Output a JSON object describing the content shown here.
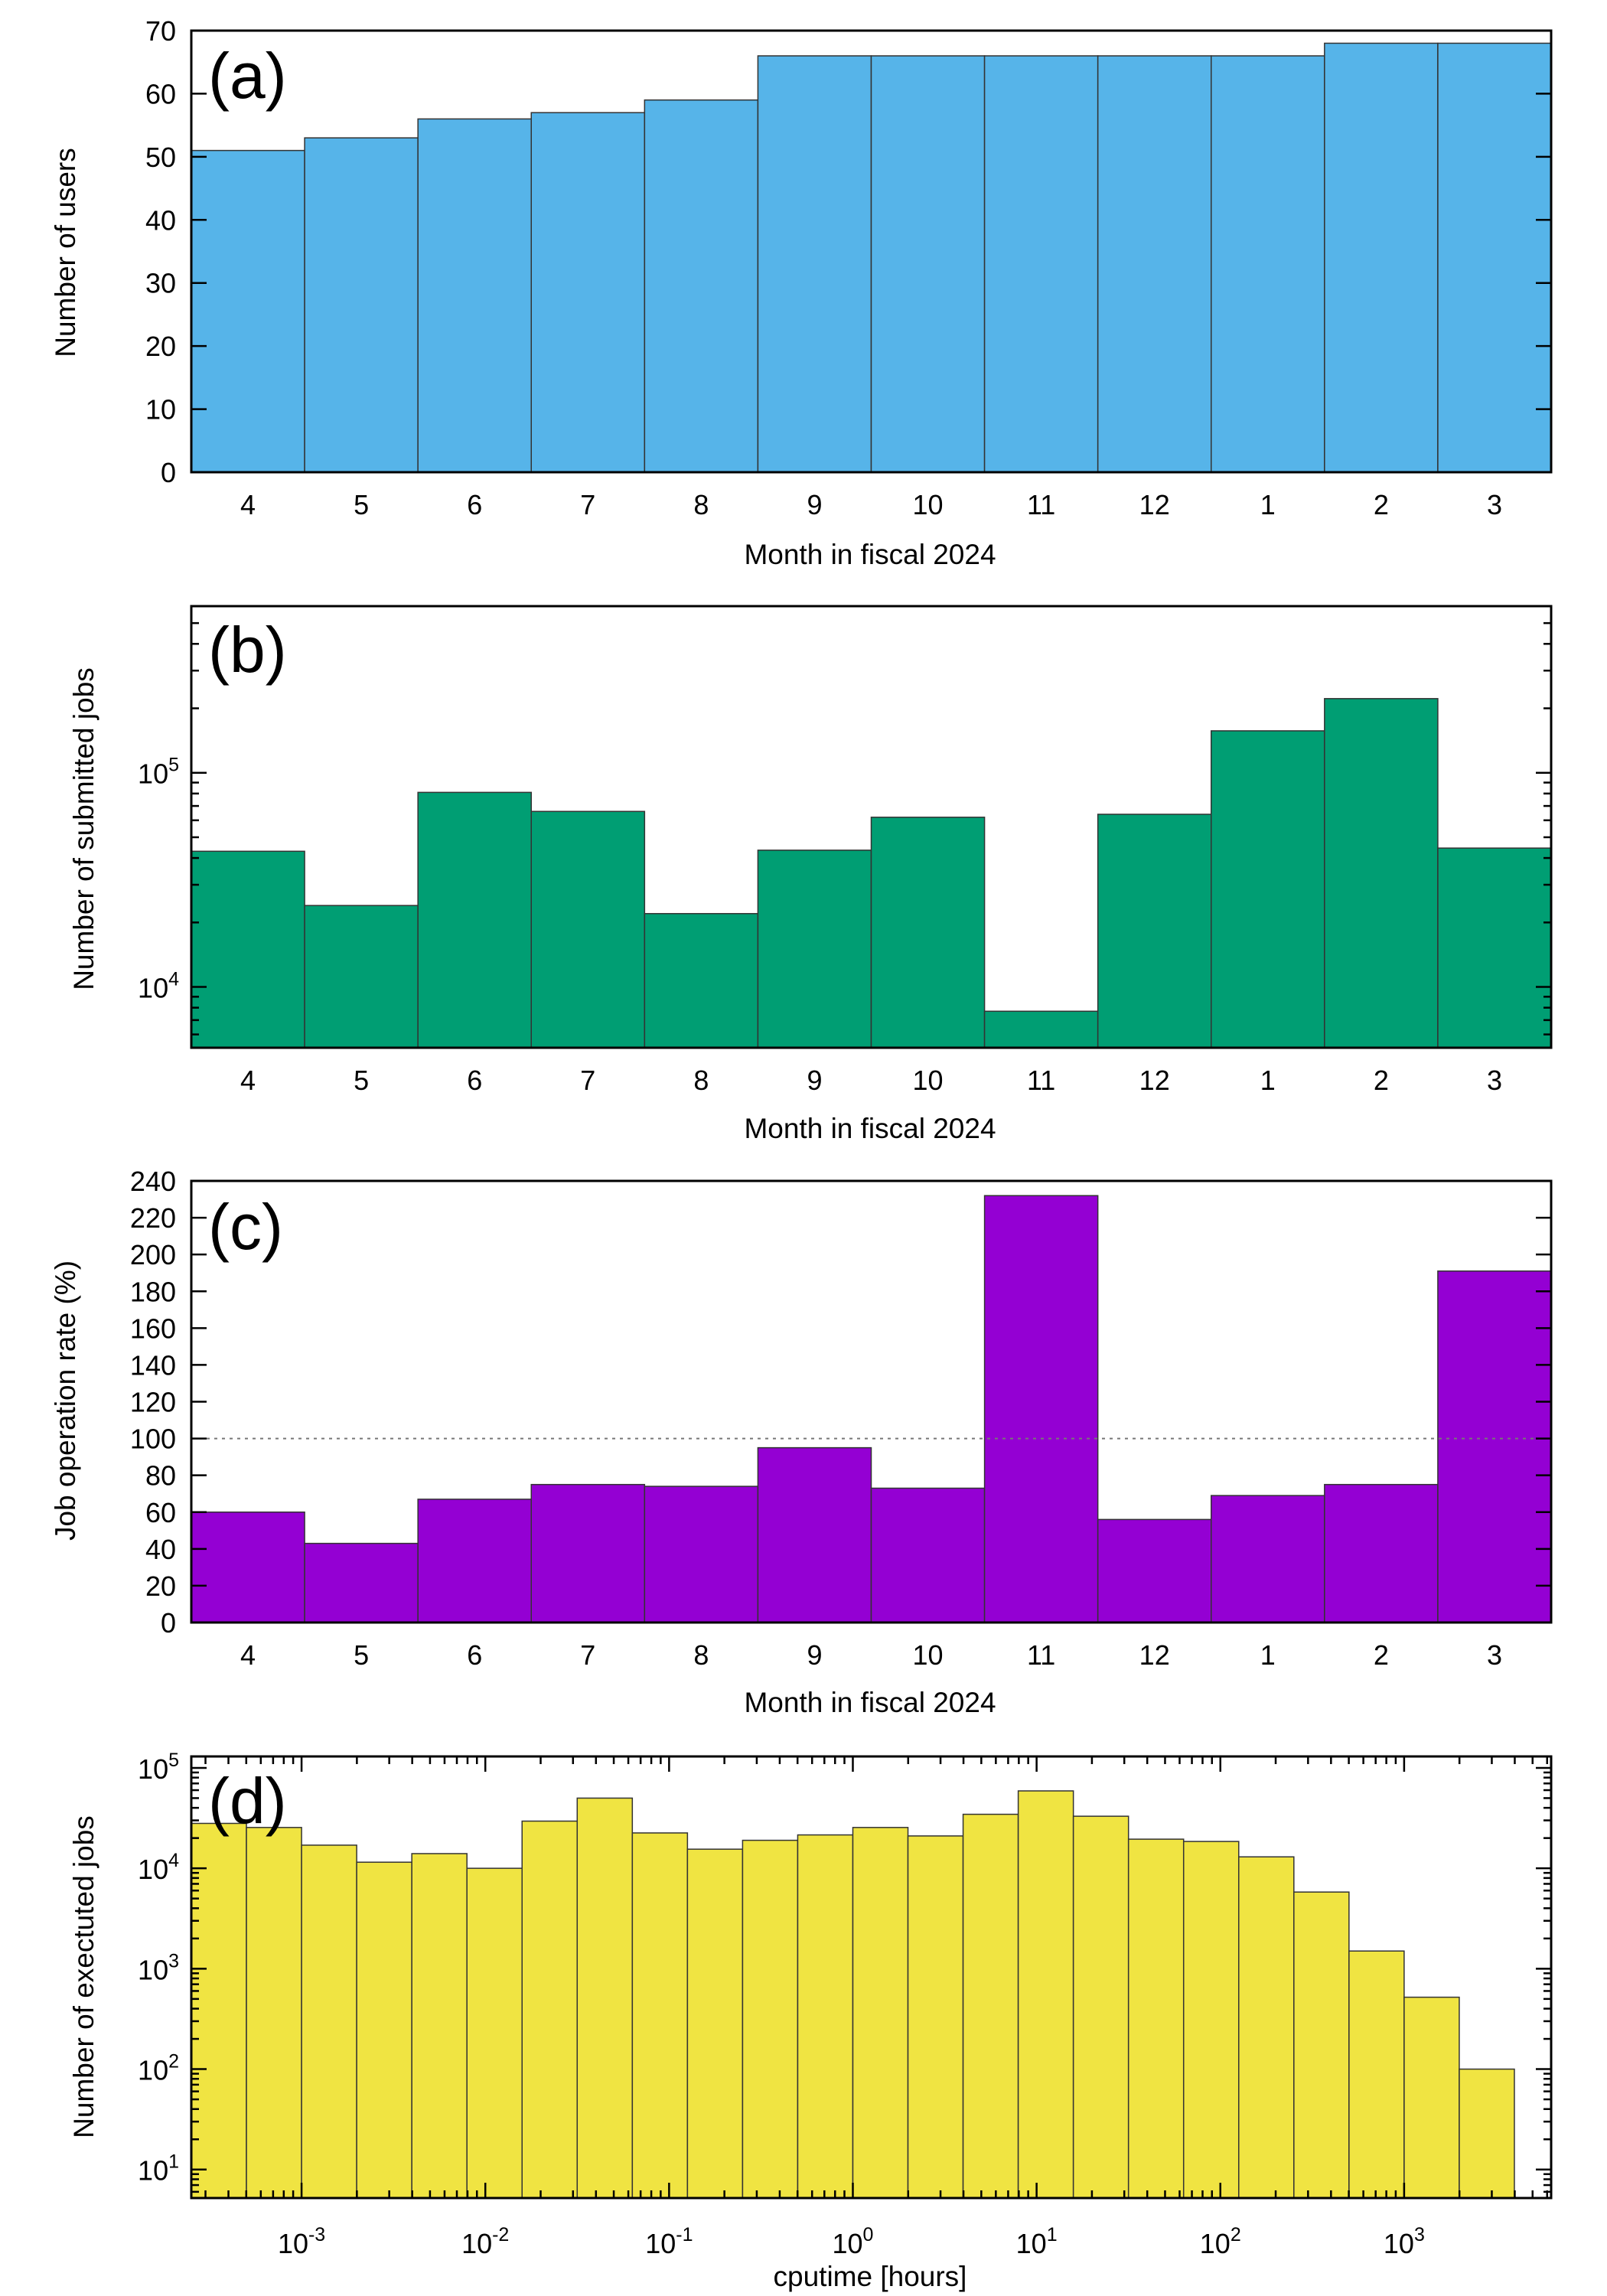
{
  "colors": {
    "panel_a": "#56b4e9",
    "panel_b": "#009e73",
    "panel_c": "#9400d3",
    "panel_d": "#f0e442"
  },
  "chart_data": [
    {
      "type": "bar",
      "panel_label": "(a)",
      "xlabel": "Month in fiscal 2024",
      "ylabel": "Number of users",
      "categories": [
        "4",
        "5",
        "6",
        "7",
        "8",
        "9",
        "10",
        "11",
        "12",
        "1",
        "2",
        "3"
      ],
      "values": [
        51,
        53,
        56,
        57,
        59,
        66,
        66,
        66,
        66,
        66,
        68,
        68
      ],
      "ylim": [
        0,
        70
      ],
      "yticks": [
        0,
        10,
        20,
        30,
        40,
        50,
        60,
        70
      ],
      "yscale": "linear",
      "grid": false
    },
    {
      "type": "bar",
      "panel_label": "(b)",
      "xlabel": "Month in fiscal 2024",
      "ylabel": "Number of submitted jobs",
      "categories": [
        "4",
        "5",
        "6",
        "7",
        "8",
        "9",
        "10",
        "11",
        "12",
        "1",
        "2",
        "3"
      ],
      "values": [
        43000,
        24000,
        81000,
        66000,
        22000,
        43500,
        62000,
        7700,
        64000,
        157000,
        222000,
        44500
      ],
      "ylim": [
        5200,
        600000
      ],
      "yticks": [
        10000,
        100000
      ],
      "yticks_base": "10",
      "yticks_exp": [
        "4",
        "5"
      ],
      "yscale": "log",
      "grid": false
    },
    {
      "type": "bar",
      "panel_label": "(c)",
      "xlabel": "Month in fiscal 2024",
      "ylabel": "Job operation rate (%)",
      "categories": [
        "4",
        "5",
        "6",
        "7",
        "8",
        "9",
        "10",
        "11",
        "12",
        "1",
        "2",
        "3"
      ],
      "values": [
        60,
        43,
        67,
        75,
        74,
        95,
        73,
        232,
        56,
        69,
        75,
        191
      ],
      "ylim": [
        0,
        240
      ],
      "yticks": [
        0,
        20,
        40,
        60,
        80,
        100,
        120,
        140,
        160,
        180,
        200,
        220,
        240
      ],
      "yscale": "linear",
      "reference_line": 100,
      "grid": false
    },
    {
      "type": "bar",
      "panel_label": "(d)",
      "xlabel": "cputime [hours]",
      "ylabel": "Number of exectuted jobs",
      "xscale": "log",
      "yscale": "log",
      "bin_edges_log10": [
        -3.6,
        -3.3,
        -3.0,
        -2.7,
        -2.4,
        -2.1,
        -1.8,
        -1.5,
        -1.2,
        -0.9,
        -0.6,
        -0.3,
        0.0,
        0.3,
        0.6,
        0.9,
        1.2,
        1.5,
        1.8,
        2.1,
        2.4,
        2.7,
        3.0,
        3.3,
        3.6
      ],
      "values": [
        28000,
        25500,
        17000,
        11500,
        14000,
        10000,
        29500,
        50000,
        22500,
        15500,
        19000,
        21500,
        25500,
        21000,
        34500,
        59000,
        33000,
        19500,
        18500,
        13000,
        5800,
        1500,
        520,
        100
      ],
      "xlim_log10": [
        -3.6,
        3.8
      ],
      "ylim": [
        5.2,
        130000
      ],
      "xticks_base": "10",
      "xticks_exp": [
        "-3",
        "-2",
        "-1",
        "0",
        "1",
        "2",
        "3"
      ],
      "yticks_base": "10",
      "yticks_exp": [
        "1",
        "2",
        "3",
        "4",
        "5"
      ],
      "grid": false
    }
  ]
}
